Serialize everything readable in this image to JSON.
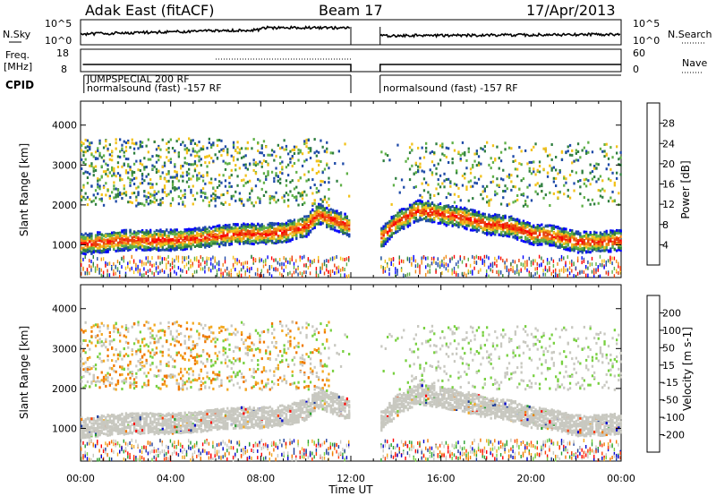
{
  "header": {
    "station": "Adak East (fitACF)",
    "beam": "Beam 17",
    "date": "17/Apr/2013"
  },
  "panels": {
    "nsky_label": "N.Sky",
    "nsearch_label": "N.Search",
    "freq_label_1": "Freq.",
    "freq_label_2": "[MHz]",
    "nave_label": "Nave",
    "cpid_label": "CPID",
    "cpid_left_text": "normalsound (fast) -157 RF",
    "cpid_left_overlap": "JUMPSPECIAL 200 RF",
    "cpid_right_text": "normalsound (fast) -157 RF",
    "nsky_ticks": [
      "10^5",
      "10^0"
    ],
    "nsearch_ticks": [
      "10^5",
      "10^0"
    ],
    "freq_ticks": [
      "18",
      "8"
    ],
    "nave_ticks": [
      "60",
      "0"
    ]
  },
  "colors": {
    "power": [
      "#0000ff",
      "#1e4aa8",
      "#2f7f3f",
      "#5fb047",
      "#f2c21a",
      "#f08a16",
      "#e8400d",
      "#ff0000"
    ],
    "velocity": [
      "#ff0000",
      "#ff3a00",
      "#f07800",
      "#f2a820",
      "#c8c8c0",
      "#c8c8c0",
      "#78d040",
      "#2aa030",
      "#1e3c9a",
      "#0000cc"
    ]
  },
  "chart_data": [
    {
      "type": "heatmap",
      "title": "Power",
      "xlabel": "Time UT",
      "ylabel": "Slant Range [km]",
      "colorbar_label": "Power [dB]",
      "x_ticks": [
        "00:00",
        "04:00",
        "08:00",
        "12:00",
        "16:00",
        "20:00",
        "00:00"
      ],
      "y_ticks": [
        "1000",
        "2000",
        "3000",
        "4000"
      ],
      "colorbar_ticks": [
        "4",
        "8",
        "12",
        "16",
        "20",
        "24",
        "28"
      ],
      "xlim": [
        0,
        24
      ],
      "ylim": [
        180,
        4600
      ],
      "data_gap_hours": [
        12.0,
        13.3
      ],
      "main_band": {
        "hours": [
          0,
          1,
          2,
          3,
          4,
          5,
          6,
          7,
          8,
          9,
          10,
          10.5,
          13.3,
          14,
          15,
          16,
          17,
          18,
          19,
          20,
          21,
          22,
          23,
          24
        ],
        "range_km": [
          1050,
          1100,
          1150,
          1150,
          1150,
          1180,
          1250,
          1300,
          1300,
          1350,
          1500,
          1800,
          1200,
          1600,
          1900,
          1800,
          1700,
          1550,
          1500,
          1300,
          1250,
          1100,
          1100,
          1150
        ],
        "peak_power_db": 28
      }
    },
    {
      "type": "heatmap",
      "title": "Velocity",
      "xlabel": "Time UT",
      "ylabel": "Slant Range [km]",
      "colorbar_label": "Velocity [m s-1]",
      "x_ticks": [
        "00:00",
        "04:00",
        "08:00",
        "12:00",
        "16:00",
        "20:00",
        "00:00"
      ],
      "y_ticks": [
        "1000",
        "2000",
        "3000",
        "4000"
      ],
      "colorbar_ticks": [
        "200",
        "100",
        "50",
        "15",
        "-15",
        "-50",
        "-100",
        "-200"
      ],
      "xlim": [
        0,
        24
      ],
      "ylim": [
        180,
        4600
      ],
      "data_gap_hours": [
        12.0,
        13.3
      ]
    }
  ]
}
